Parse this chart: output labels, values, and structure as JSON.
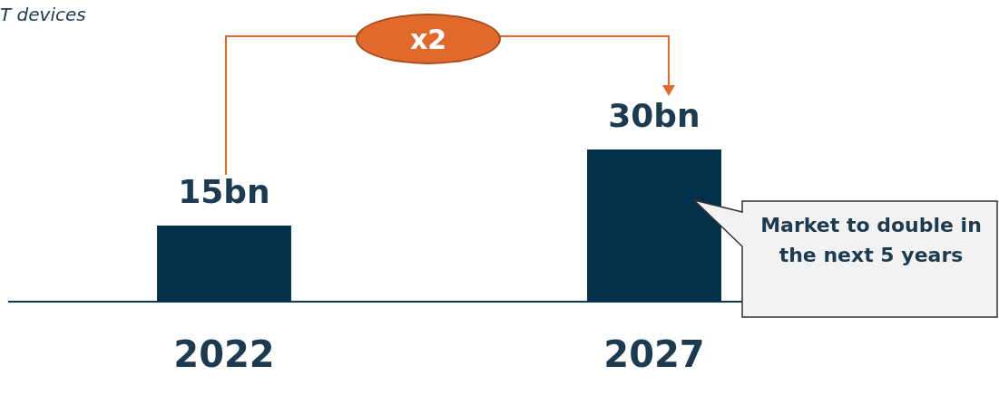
{
  "chart_data": {
    "type": "bar",
    "title": "T devices",
    "categories": [
      "2022",
      "2027"
    ],
    "values": [
      15,
      30
    ],
    "value_labels": [
      "15bn",
      "30bn"
    ],
    "color": "#03314b",
    "annotations": [
      "x2",
      "Market to double in the next 5 years"
    ]
  }
}
